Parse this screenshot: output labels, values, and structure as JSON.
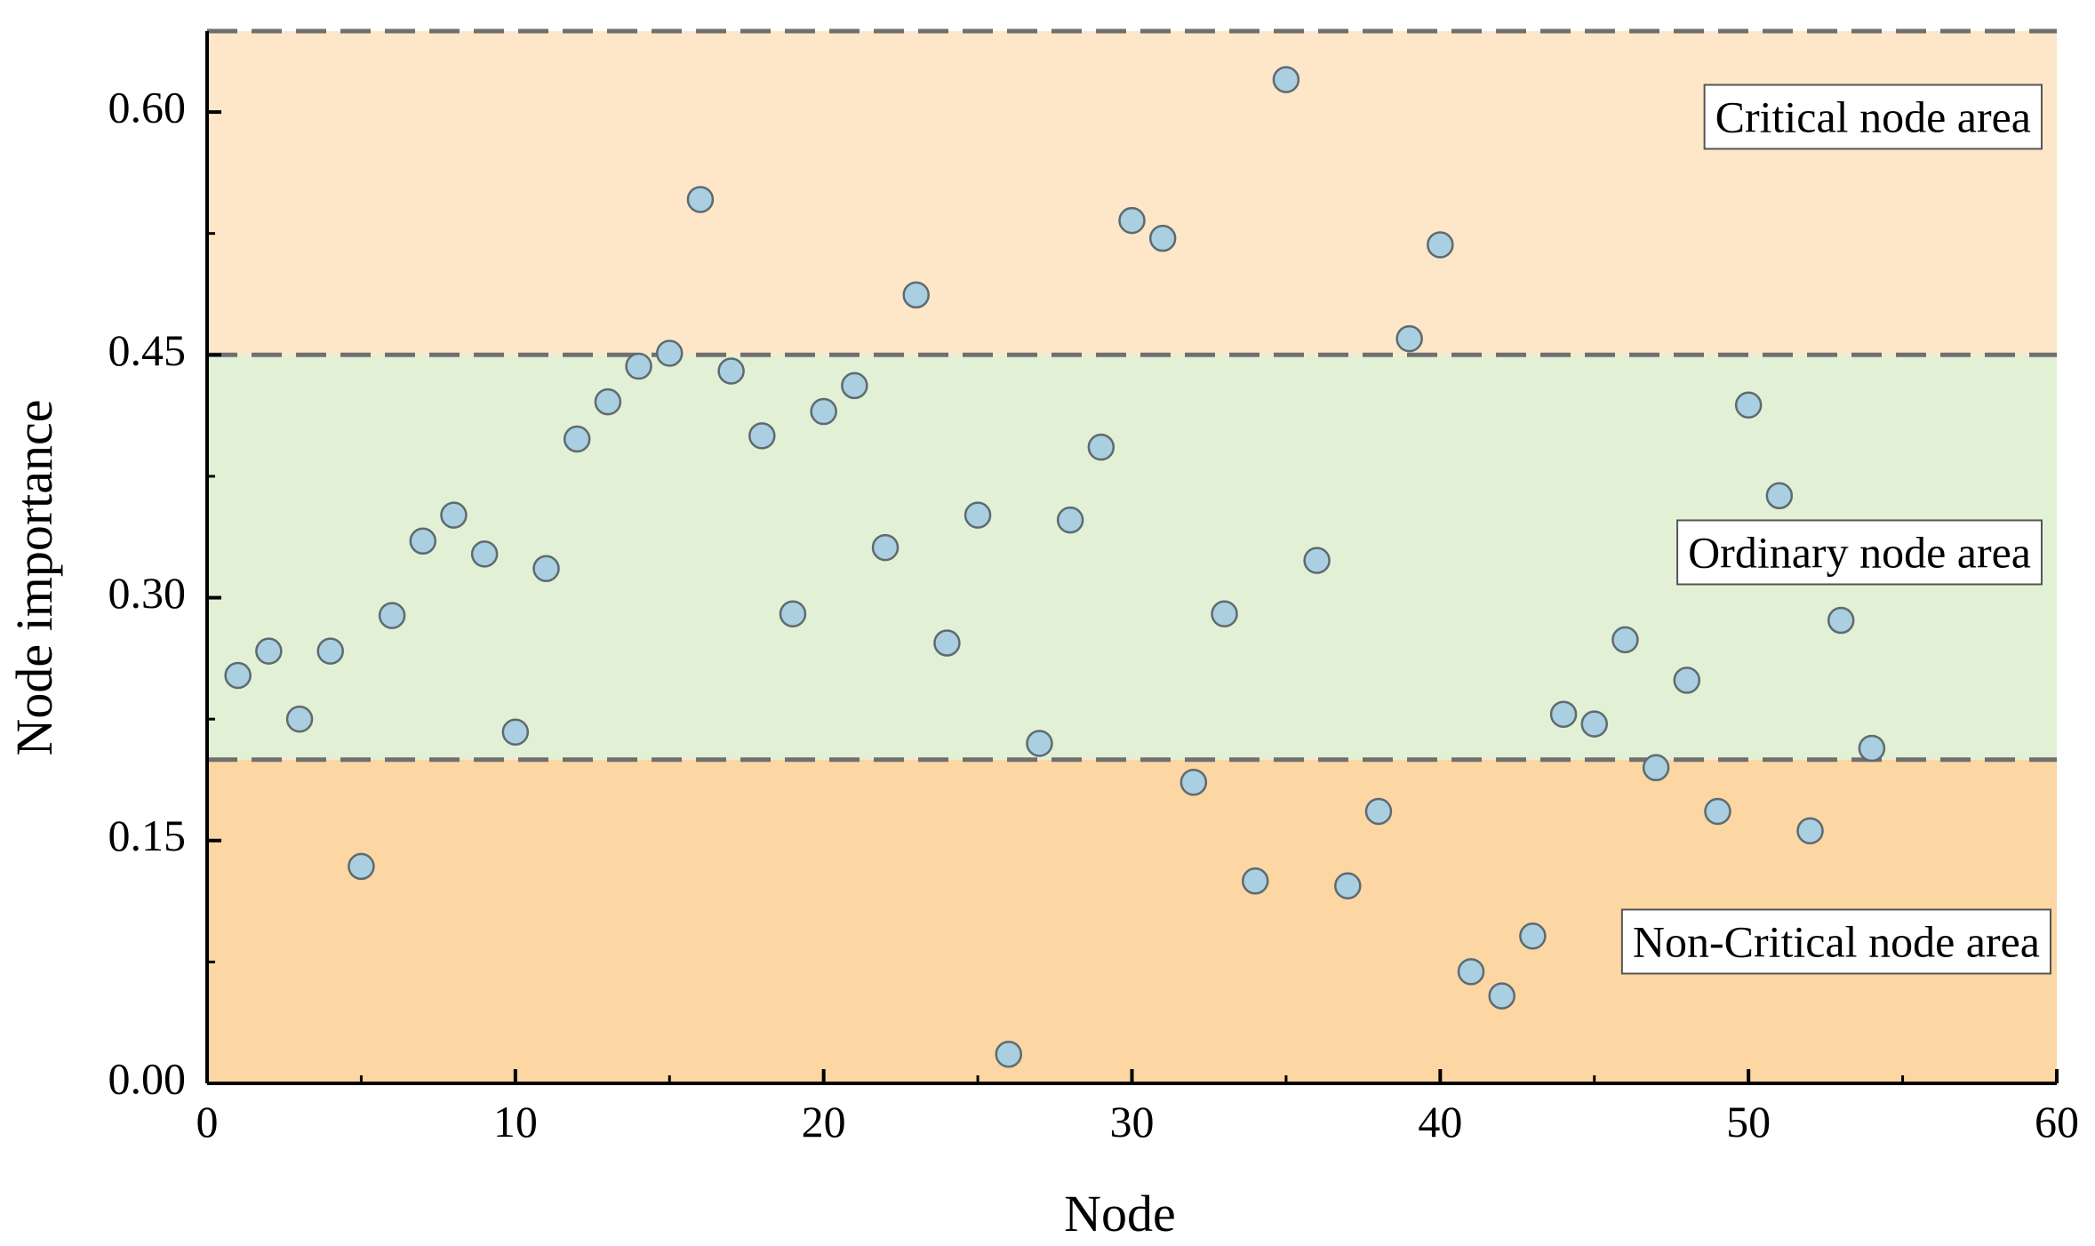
{
  "chart_data": {
    "type": "scatter",
    "xlabel": "Node",
    "ylabel": "Node importance",
    "xlim": [
      0,
      60
    ],
    "ylim": [
      0,
      0.65
    ],
    "xticks": [
      0,
      10,
      20,
      30,
      40,
      50,
      60
    ],
    "yticks": [
      0.0,
      0.15,
      0.3,
      0.45,
      0.6
    ],
    "ytick_labels": [
      "0.00",
      "0.15",
      "0.30",
      "0.45",
      "0.60"
    ],
    "grid": false,
    "thresholds": [
      0.2,
      0.45,
      0.65
    ],
    "regions": [
      {
        "label": "Critical node area",
        "from": 0.45,
        "to": 0.65,
        "color": "#fde7c8"
      },
      {
        "label": "Ordinary node area",
        "from": 0.2,
        "to": 0.45,
        "color": "#e2f0d5"
      },
      {
        "label": "Non-Critical node area",
        "from": 0.0,
        "to": 0.2,
        "color": "#fcd6a3"
      }
    ],
    "marker_color": "#a9cfe0",
    "series": [
      {
        "x": [
          1,
          2,
          3,
          4,
          5,
          6,
          7,
          8,
          9,
          10,
          11,
          12,
          13,
          14,
          15,
          16,
          17,
          18,
          19,
          20,
          21,
          22,
          23,
          24,
          25,
          26,
          27,
          28,
          29,
          30,
          31,
          32,
          33,
          34,
          35,
          36,
          37,
          38,
          39,
          40,
          41,
          42,
          43,
          44,
          45,
          46,
          47,
          48,
          49,
          50,
          51,
          52,
          53,
          54
        ],
        "y": [
          0.252,
          0.267,
          0.225,
          0.267,
          0.134,
          0.289,
          0.335,
          0.351,
          0.327,
          0.217,
          0.318,
          0.398,
          0.421,
          0.443,
          0.451,
          0.546,
          0.44,
          0.4,
          0.29,
          0.415,
          0.431,
          0.331,
          0.487,
          0.272,
          0.351,
          0.018,
          0.21,
          0.348,
          0.393,
          0.533,
          0.522,
          0.186,
          0.29,
          0.125,
          0.62,
          0.323,
          0.122,
          0.168,
          0.46,
          0.518,
          0.069,
          0.054,
          0.091,
          0.228,
          0.222,
          0.274,
          0.195,
          0.249,
          0.168,
          0.419,
          0.363,
          0.156,
          0.286,
          0.207
        ]
      }
    ]
  }
}
